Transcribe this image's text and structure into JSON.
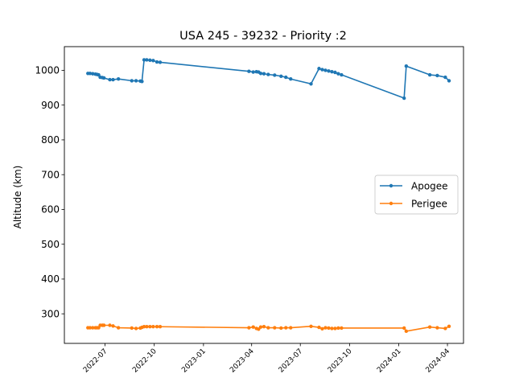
{
  "chart_data": {
    "type": "line",
    "title": "USA 245 - 39232 - Priority :2",
    "xlabel": "",
    "ylabel": "Altitude (km)",
    "ylim": [
      215,
      1068
    ],
    "xlim": [
      "2022-04-16",
      "2024-05-01"
    ],
    "yticks": [
      300,
      400,
      500,
      600,
      700,
      800,
      900,
      1000
    ],
    "xticks": [
      "2022-07",
      "2022-10",
      "2023-01",
      "2023-04",
      "2023-07",
      "2023-10",
      "2024-01",
      "2024-04"
    ],
    "grid": false,
    "legend_position": "center-right",
    "colors": {
      "Apogee": "#1f77b4",
      "Perigee": "#ff7f0e"
    },
    "series": [
      {
        "name": "Apogee",
        "points": [
          [
            "2022-05-30",
            991
          ],
          [
            "2022-06-03",
            991
          ],
          [
            "2022-06-08",
            990
          ],
          [
            "2022-06-13",
            989
          ],
          [
            "2022-06-16",
            988
          ],
          [
            "2022-06-19",
            987
          ],
          [
            "2022-06-22",
            980
          ],
          [
            "2022-06-26",
            979
          ],
          [
            "2022-06-29",
            978
          ],
          [
            "2022-07-10",
            973
          ],
          [
            "2022-07-16",
            973
          ],
          [
            "2022-07-26",
            975
          ],
          [
            "2022-08-20",
            970
          ],
          [
            "2022-08-28",
            970
          ],
          [
            "2022-09-05",
            969
          ],
          [
            "2022-09-08",
            968
          ],
          [
            "2022-09-12",
            1030
          ],
          [
            "2022-09-17",
            1030
          ],
          [
            "2022-09-23",
            1029
          ],
          [
            "2022-09-29",
            1028
          ],
          [
            "2022-10-06",
            1024
          ],
          [
            "2022-10-12",
            1023
          ],
          [
            "2023-03-27",
            997
          ],
          [
            "2023-04-04",
            995
          ],
          [
            "2023-04-10",
            996
          ],
          [
            "2023-04-14",
            995
          ],
          [
            "2023-04-18",
            991
          ],
          [
            "2023-04-24",
            990
          ],
          [
            "2023-05-02",
            988
          ],
          [
            "2023-05-14",
            986
          ],
          [
            "2023-05-26",
            983
          ],
          [
            "2023-06-04",
            980
          ],
          [
            "2023-06-13",
            975
          ],
          [
            "2023-07-21",
            961
          ],
          [
            "2023-08-05",
            1005
          ],
          [
            "2023-08-11",
            1002
          ],
          [
            "2023-08-17",
            1000
          ],
          [
            "2023-08-23",
            998
          ],
          [
            "2023-08-29",
            996
          ],
          [
            "2023-09-04",
            994
          ],
          [
            "2023-09-10",
            990
          ],
          [
            "2023-09-16",
            987
          ],
          [
            "2024-01-11",
            920
          ],
          [
            "2024-01-15",
            1012
          ],
          [
            "2024-02-28",
            987
          ],
          [
            "2024-03-13",
            985
          ],
          [
            "2024-03-28",
            980
          ],
          [
            "2024-04-04",
            970
          ]
        ]
      },
      {
        "name": "Perigee",
        "points": [
          [
            "2022-05-30",
            260
          ],
          [
            "2022-06-03",
            260
          ],
          [
            "2022-06-08",
            260
          ],
          [
            "2022-06-13",
            260
          ],
          [
            "2022-06-16",
            260
          ],
          [
            "2022-06-19",
            260
          ],
          [
            "2022-06-22",
            267
          ],
          [
            "2022-06-26",
            267
          ],
          [
            "2022-06-29",
            267
          ],
          [
            "2022-07-10",
            267
          ],
          [
            "2022-07-16",
            265
          ],
          [
            "2022-07-26",
            260
          ],
          [
            "2022-08-20",
            259
          ],
          [
            "2022-08-28",
            258
          ],
          [
            "2022-09-05",
            259
          ],
          [
            "2022-09-08",
            261
          ],
          [
            "2022-09-12",
            263
          ],
          [
            "2022-09-17",
            263
          ],
          [
            "2022-09-23",
            263
          ],
          [
            "2022-09-29",
            263
          ],
          [
            "2022-10-06",
            263
          ],
          [
            "2022-10-12",
            263
          ],
          [
            "2023-03-27",
            260
          ],
          [
            "2023-04-04",
            262
          ],
          [
            "2023-04-10",
            258
          ],
          [
            "2023-04-14",
            256
          ],
          [
            "2023-04-18",
            262
          ],
          [
            "2023-04-24",
            263
          ],
          [
            "2023-05-02",
            260
          ],
          [
            "2023-05-14",
            260
          ],
          [
            "2023-05-26",
            259
          ],
          [
            "2023-06-04",
            260
          ],
          [
            "2023-06-13",
            260
          ],
          [
            "2023-07-21",
            264
          ],
          [
            "2023-08-05",
            261
          ],
          [
            "2023-08-11",
            257
          ],
          [
            "2023-08-17",
            260
          ],
          [
            "2023-08-23",
            259
          ],
          [
            "2023-08-29",
            258
          ],
          [
            "2023-09-04",
            258
          ],
          [
            "2023-09-10",
            259
          ],
          [
            "2023-09-16",
            259
          ],
          [
            "2024-01-11",
            259
          ],
          [
            "2024-01-15",
            250
          ],
          [
            "2024-02-28",
            262
          ],
          [
            "2024-03-13",
            260
          ],
          [
            "2024-03-28",
            258
          ],
          [
            "2024-04-04",
            264
          ]
        ]
      }
    ]
  }
}
